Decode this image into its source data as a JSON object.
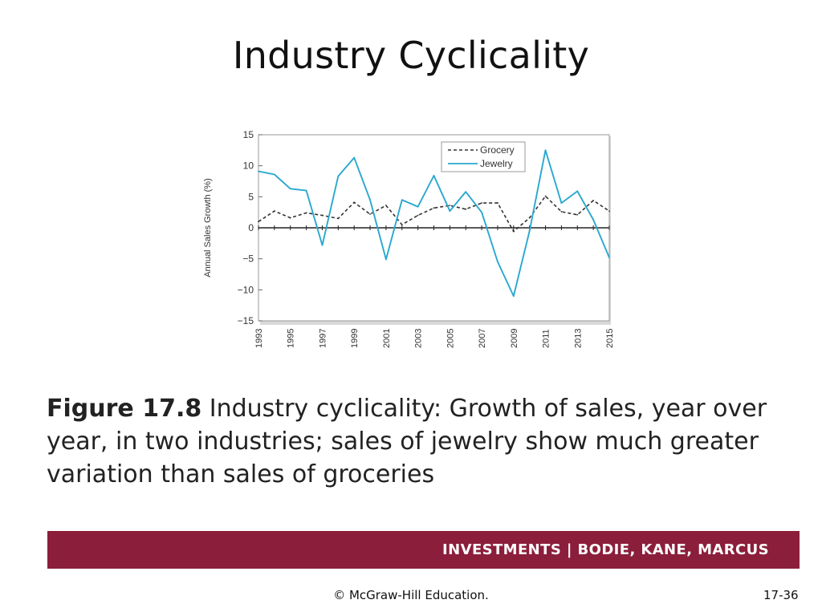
{
  "slide": {
    "title": "Industry Cyclicality",
    "caption_lead": "Figure 17.8",
    "caption_text": " Industry cyclicality: Growth of sales, year over year, in two industries; sales of jewelry show much greater variation than sales of groceries",
    "footer_brand": "INVESTMENTS | BODIE, KANE, MARCUS",
    "copyright": "© McGraw-Hill Education.",
    "page_number": "17-36"
  },
  "colors": {
    "footer_band": "#8b1e3a",
    "grocery": "#333333",
    "jewelry": "#29a8cf"
  },
  "chart_data": {
    "type": "line",
    "title": "",
    "xlabel": "",
    "ylabel": "Annual Sales Growth (%)",
    "ylim": [
      -15,
      15
    ],
    "yticks": [
      15,
      10,
      5,
      0,
      -5,
      -10,
      -15
    ],
    "ytick_labels": [
      "15",
      "10",
      "5",
      "0",
      "−5",
      "−10",
      "−15"
    ],
    "xlim": [
      1993,
      2015
    ],
    "xticks": [
      1993,
      1995,
      1997,
      1999,
      2001,
      2003,
      2005,
      2007,
      2009,
      2011,
      2013,
      2015
    ],
    "xtick_labels": [
      "1993",
      "1995",
      "1997",
      "1999",
      "2001",
      "2003",
      "2005",
      "2007",
      "2009",
      "2011",
      "2013",
      "2015"
    ],
    "legend": "top-right",
    "grid": false,
    "x": [
      1993,
      1994,
      1995,
      1996,
      1997,
      1998,
      1999,
      2000,
      2001,
      2002,
      2003,
      2004,
      2005,
      2006,
      2007,
      2008,
      2009,
      2010,
      2011,
      2012,
      2013,
      2014,
      2015
    ],
    "series": [
      {
        "name": "Grocery",
        "style": "dashed",
        "color": "#333333",
        "values": [
          1.0,
          2.7,
          1.6,
          2.4,
          2.0,
          1.5,
          4.1,
          2.2,
          3.6,
          0.5,
          2.0,
          3.2,
          3.6,
          3.0,
          4.0,
          4.0,
          -0.6,
          1.6,
          5.1,
          2.6,
          2.1,
          4.4,
          2.7
        ]
      },
      {
        "name": "Jewelry",
        "style": "solid",
        "color": "#29a8cf",
        "values": [
          9.1,
          8.6,
          6.3,
          6.0,
          -2.8,
          8.3,
          11.3,
          4.5,
          -5.1,
          4.5,
          3.4,
          8.4,
          2.7,
          5.8,
          2.5,
          -5.5,
          -11.0,
          -0.5,
          12.5,
          4.0,
          5.9,
          1.3,
          -4.8
        ]
      }
    ]
  }
}
